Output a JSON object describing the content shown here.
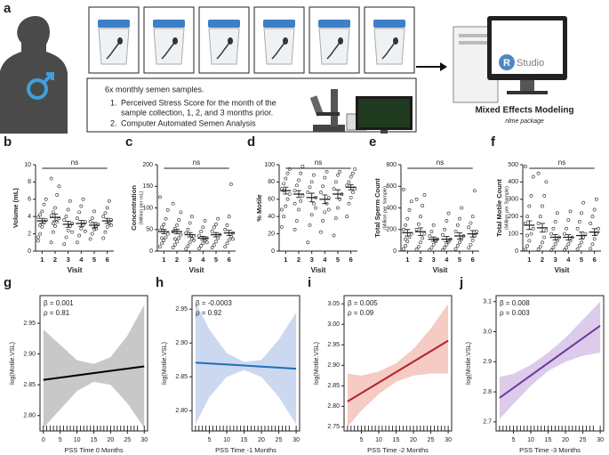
{
  "panel_a": {
    "label": "a",
    "box_title": "6x monthly semen samples.",
    "items": [
      {
        "number": "1.",
        "lines": [
          "Perceived Stress Score for the month of the",
          "sample collection, 1, 2, and 3 months prior."
        ]
      },
      {
        "number": "2.",
        "lines": [
          "Computer Automated Semen Analysis"
        ]
      }
    ],
    "logo_r": "R",
    "logo_text": "Studio",
    "model_title": "Mixed Effects Modeling",
    "model_subtitle": "nlme package"
  },
  "chart_data": [
    {
      "type": "dot",
      "label": "b",
      "ylabel": "Volume (mL)",
      "xlabel": "Visit",
      "annotation": "ns",
      "color": "#222",
      "categories": [
        "1",
        "2",
        "3",
        "4",
        "5",
        "6"
      ],
      "ylim": [
        0,
        10
      ],
      "yticks": [
        0,
        2,
        4,
        6,
        8,
        10
      ],
      "points": [
        [
          1.2,
          2.0,
          2.8,
          3.3,
          3.6,
          3.9,
          4.2,
          4.6,
          5.4,
          6.0,
          1.6,
          3.0
        ],
        [
          1.0,
          2.2,
          2.9,
          3.4,
          3.8,
          4.1,
          4.5,
          5.0,
          6.5,
          7.5,
          8.4,
          3.2
        ],
        [
          0.8,
          1.6,
          2.4,
          2.9,
          3.2,
          3.6,
          4.0,
          4.8,
          5.8,
          2.2
        ],
        [
          1.0,
          1.8,
          2.6,
          3.0,
          3.4,
          3.8,
          4.5,
          5.2,
          6.0,
          2.3
        ],
        [
          1.4,
          2.0,
          2.5,
          2.9,
          3.1,
          3.4,
          3.8,
          4.6,
          2.6
        ],
        [
          1.5,
          2.2,
          2.8,
          3.2,
          3.6,
          4.0,
          4.4,
          5.0,
          5.8,
          3.0
        ]
      ],
      "means": [
        3.5,
        3.9,
        3.1,
        3.2,
        3.0,
        3.5
      ],
      "errors": [
        0.3,
        0.4,
        0.35,
        0.35,
        0.3,
        0.3
      ]
    },
    {
      "type": "dot",
      "label": "c",
      "ylabel": "Concentration",
      "ylabel_sub": "(Million per mL)",
      "xlabel": "Visit",
      "annotation": "ns",
      "color": "#222",
      "categories": [
        "1",
        "2",
        "3",
        "4",
        "5",
        "6"
      ],
      "ylim": [
        0,
        200
      ],
      "yticks": [
        0,
        50,
        100,
        150,
        200
      ],
      "points": [
        [
          10,
          18,
          25,
          32,
          40,
          48,
          55,
          62,
          75,
          95,
          125,
          30
        ],
        [
          8,
          15,
          22,
          30,
          38,
          45,
          52,
          60,
          72,
          90,
          110,
          28
        ],
        [
          5,
          12,
          20,
          28,
          35,
          42,
          50,
          65,
          80,
          25
        ],
        [
          6,
          12,
          18,
          24,
          30,
          36,
          45,
          55,
          70,
          20
        ],
        [
          8,
          14,
          22,
          30,
          38,
          46,
          55,
          62,
          75
        ],
        [
          10,
          18,
          26,
          34,
          42,
          50,
          60,
          80,
          155,
          28
        ]
      ],
      "means": [
        45,
        45,
        38,
        30,
        38,
        42
      ],
      "errors": [
        5,
        5,
        5,
        4,
        5,
        6
      ]
    },
    {
      "type": "dot",
      "label": "d",
      "ylabel": "% Motile",
      "xlabel": "Visit",
      "annotation": "ns",
      "color": "#222",
      "categories": [
        "1",
        "2",
        "3",
        "4",
        "5",
        "6"
      ],
      "ylim": [
        0,
        100
      ],
      "yticks": [
        0,
        20,
        40,
        60,
        80,
        100
      ],
      "points": [
        [
          28,
          40,
          52,
          60,
          66,
          72,
          78,
          84,
          90,
          95,
          48,
          70
        ],
        [
          25,
          35,
          48,
          58,
          64,
          70,
          76,
          82,
          90,
          98,
          55
        ],
        [
          10,
          30,
          42,
          55,
          62,
          68,
          74,
          80,
          88,
          50
        ],
        [
          22,
          35,
          45,
          55,
          62,
          68,
          75,
          85,
          92,
          48
        ],
        [
          18,
          38,
          50,
          60,
          66,
          72,
          80,
          88,
          92
        ],
        [
          40,
          55,
          62,
          68,
          72,
          76,
          80,
          86,
          90,
          95
        ]
      ],
      "means": [
        70,
        66,
        62,
        60,
        66,
        74
      ],
      "errors": [
        4,
        4,
        5,
        5,
        5,
        3
      ]
    },
    {
      "type": "dot",
      "label": "e",
      "ylabel": "Total Sperm Count",
      "ylabel_sub": "(Million per Sample)",
      "xlabel": "Visit",
      "annotation": "ns",
      "color": "#222",
      "categories": [
        "1",
        "2",
        "3",
        "4",
        "5",
        "6"
      ],
      "ylim": [
        0,
        800
      ],
      "yticks": [
        0,
        200,
        400,
        600,
        800
      ],
      "points": [
        [
          20,
          50,
          90,
          130,
          160,
          200,
          240,
          300,
          380,
          460,
          570,
          110
        ],
        [
          15,
          40,
          80,
          120,
          160,
          200,
          250,
          320,
          420,
          520,
          480
        ],
        [
          10,
          30,
          60,
          90,
          110,
          140,
          180,
          240,
          100
        ],
        [
          10,
          35,
          60,
          85,
          110,
          150,
          200,
          280,
          350
        ],
        [
          20,
          50,
          80,
          110,
          140,
          180,
          240,
          300,
          400
        ],
        [
          30,
          60,
          100,
          140,
          180,
          220,
          260,
          320,
          560
        ]
      ],
      "means": [
        170,
        180,
        110,
        110,
        140,
        160
      ],
      "errors": [
        30,
        35,
        20,
        25,
        30,
        30
      ]
    },
    {
      "type": "dot",
      "label": "f",
      "ylabel": "Total Motile Count",
      "ylabel_sub": "(Million per Sample)",
      "xlabel": "Visit",
      "annotation": "ns",
      "color": "#222",
      "categories": [
        "1",
        "2",
        "3",
        "4",
        "5",
        "6"
      ],
      "ylim": [
        0,
        500
      ],
      "yticks": [
        0,
        100,
        200,
        300,
        400,
        500
      ],
      "points": [
        [
          10,
          30,
          60,
          100,
          130,
          160,
          200,
          260,
          320,
          430,
          490,
          90
        ],
        [
          10,
          25,
          50,
          80,
          120,
          160,
          200,
          260,
          320,
          400,
          450
        ],
        [
          5,
          20,
          40,
          60,
          80,
          100,
          130,
          170,
          220
        ],
        [
          5,
          20,
          40,
          60,
          80,
          100,
          130,
          180,
          230
        ],
        [
          10,
          30,
          50,
          80,
          100,
          130,
          170,
          220,
          280
        ],
        [
          15,
          40,
          70,
          100,
          130,
          160,
          200,
          240,
          300
        ]
      ],
      "means": [
        150,
        135,
        80,
        80,
        90,
        110
      ],
      "errors": [
        25,
        25,
        15,
        15,
        20,
        20
      ]
    },
    {
      "type": "line",
      "label": "g",
      "xlabel": "PSS Time 0 Months",
      "ylabel": "log(Motile.VSL)",
      "annotations": [
        "β = 0.001",
        "ρ = 0.81"
      ],
      "color": "#000000",
      "band_color": "#c8c8c8",
      "x": [
        0,
        30
      ],
      "values": [
        2.858,
        2.88
      ],
      "band": {
        "x": [
          0,
          5,
          10,
          15,
          20,
          25,
          30
        ],
        "lower": [
          2.78,
          2.81,
          2.84,
          2.855,
          2.85,
          2.82,
          2.78
        ],
        "upper": [
          2.94,
          2.915,
          2.89,
          2.884,
          2.895,
          2.93,
          2.98
        ]
      },
      "xlim": [
        -1,
        31
      ],
      "xticks": [
        0,
        5,
        10,
        15,
        20,
        25,
        30
      ],
      "ylim": [
        2.775,
        2.995
      ],
      "yticks": [
        {
          "value": 2.8,
          "label": "2.80"
        },
        2.85,
        {
          "value": 2.9,
          "label": "2.90"
        },
        2.95
      ],
      "rug": [
        0,
        1,
        2,
        3,
        4,
        5,
        6,
        7,
        8,
        9,
        10,
        11,
        12,
        13,
        14,
        15,
        16,
        17,
        18,
        19,
        20,
        21,
        22,
        23,
        24,
        25,
        26,
        27,
        28,
        30
      ]
    },
    {
      "type": "line",
      "label": "h",
      "xlabel": "PSS Time -1 Months",
      "ylabel": "log(Motile.VSL)",
      "annotations": [
        "β = -0.0003",
        "ρ = 0.92"
      ],
      "color": "#1f6fb5",
      "band_color": "#ccd8ef",
      "x": [
        1,
        30
      ],
      "values": [
        2.871,
        2.862
      ],
      "band": {
        "x": [
          1,
          5,
          10,
          15,
          20,
          25,
          30
        ],
        "lower": [
          2.78,
          2.82,
          2.85,
          2.86,
          2.85,
          2.82,
          2.78
        ],
        "upper": [
          2.96,
          2.92,
          2.885,
          2.872,
          2.875,
          2.905,
          2.945
        ]
      },
      "xlim": [
        0,
        31
      ],
      "xticks": [
        5,
        10,
        15,
        20,
        25,
        30
      ],
      "ylim": [
        2.77,
        2.97
      ],
      "yticks": [
        {
          "value": 2.8,
          "label": "2.80"
        },
        2.85,
        {
          "value": 2.9,
          "label": "2.90"
        },
        2.95
      ],
      "rug": [
        1,
        2,
        3,
        4,
        5,
        6,
        7,
        8,
        9,
        10,
        11,
        12,
        13,
        14,
        15,
        16,
        17,
        18,
        19,
        20,
        21,
        22,
        23,
        24,
        25,
        26,
        27,
        28,
        30
      ]
    },
    {
      "type": "line",
      "label": "i",
      "xlabel": "PSS Time -2 Months",
      "ylabel": "log(Motile.VSL)",
      "annotations": [
        "β = 0.005",
        "ρ = 0.09"
      ],
      "color": "#b5202e",
      "band_color": "#f5cbc4",
      "x": [
        1,
        30
      ],
      "values": [
        2.812,
        2.96
      ],
      "band": {
        "x": [
          1,
          5,
          10,
          15,
          20,
          25,
          30
        ],
        "lower": [
          2.75,
          2.79,
          2.83,
          2.86,
          2.875,
          2.88,
          2.88
        ],
        "upper": [
          2.88,
          2.875,
          2.885,
          2.905,
          2.94,
          2.99,
          3.05
        ]
      },
      "xlim": [
        0,
        31
      ],
      "xticks": [
        5,
        10,
        15,
        20,
        25,
        30
      ],
      "ylim": [
        2.74,
        3.07
      ],
      "yticks": [
        2.75,
        {
          "value": 2.8,
          "label": "2.80"
        },
        2.85,
        {
          "value": 2.9,
          "label": "2.90"
        },
        2.95,
        {
          "value": 3.0,
          "label": "3.00"
        },
        3.05
      ],
      "rug": [
        1,
        2,
        3,
        4,
        5,
        6,
        7,
        8,
        9,
        10,
        11,
        12,
        13,
        14,
        15,
        16,
        17,
        18,
        19,
        20,
        21,
        22,
        23,
        24,
        25,
        26,
        27,
        28,
        29,
        30
      ]
    },
    {
      "type": "line",
      "label": "j",
      "xlabel": "PSS Time -3 Months",
      "ylabel": "log(Motile.VSL)",
      "annotations": [
        "β = 0.008",
        "ρ = 0.003"
      ],
      "color": "#6b3a9c",
      "band_color": "#dccbea",
      "x": [
        1,
        30
      ],
      "values": [
        2.78,
        3.02
      ],
      "band": {
        "x": [
          1,
          5,
          10,
          15,
          20,
          25,
          30
        ],
        "lower": [
          2.71,
          2.76,
          2.82,
          2.87,
          2.9,
          2.92,
          2.93
        ],
        "upper": [
          2.85,
          2.86,
          2.89,
          2.93,
          2.98,
          3.04,
          3.1
        ]
      },
      "xlim": [
        0,
        31
      ],
      "xticks": [
        5,
        10,
        15,
        20,
        25,
        30
      ],
      "ylim": [
        2.67,
        3.12
      ],
      "yticks": [
        2.7,
        2.8,
        2.9,
        {
          "value": 3.0,
          "label": "3.0"
        },
        3.1
      ],
      "rug": [
        1,
        2,
        3,
        4,
        5,
        6,
        7,
        8,
        9,
        10,
        11,
        12,
        13,
        14,
        15,
        16,
        17,
        18,
        19,
        20,
        21,
        22,
        23,
        24,
        25,
        26,
        27,
        28,
        30
      ]
    }
  ]
}
